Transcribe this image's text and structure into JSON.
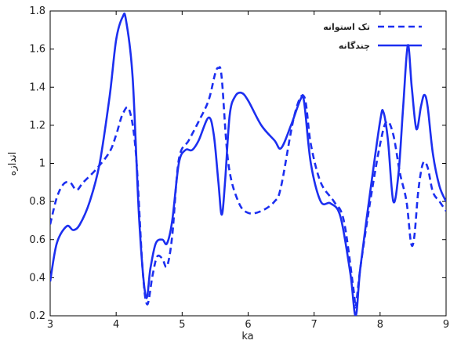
{
  "chart_data": {
    "type": "line",
    "xlabel": "ka",
    "ylabel": "اندازه",
    "xlim": [
      3,
      9
    ],
    "ylim": [
      0.2,
      1.8
    ],
    "xticks": [
      "3",
      "4",
      "5",
      "6",
      "7",
      "8",
      "9"
    ],
    "yticks": [
      "0.2",
      "0.4",
      "0.6",
      "0.8",
      "1",
      "1.2",
      "1.4",
      "1.6",
      "1.8"
    ],
    "grid": false,
    "legend_position": "top-right",
    "colors": {
      "series_color": "#1c2ff0"
    },
    "series": [
      {
        "name": "تک استوانه",
        "style": "dashed",
        "points": [
          [
            3.0,
            0.68
          ],
          [
            3.1,
            0.82
          ],
          [
            3.2,
            0.89
          ],
          [
            3.3,
            0.9
          ],
          [
            3.4,
            0.86
          ],
          [
            3.5,
            0.9
          ],
          [
            3.7,
            0.97
          ],
          [
            3.9,
            1.06
          ],
          [
            4.0,
            1.15
          ],
          [
            4.1,
            1.26
          ],
          [
            4.2,
            1.28
          ],
          [
            4.3,
            1.05
          ],
          [
            4.4,
            0.45
          ],
          [
            4.47,
            0.26
          ],
          [
            4.55,
            0.41
          ],
          [
            4.62,
            0.51
          ],
          [
            4.7,
            0.5
          ],
          [
            4.77,
            0.46
          ],
          [
            4.85,
            0.62
          ],
          [
            4.95,
            1.02
          ],
          [
            5.1,
            1.12
          ],
          [
            5.25,
            1.22
          ],
          [
            5.4,
            1.33
          ],
          [
            5.5,
            1.47
          ],
          [
            5.55,
            1.5
          ],
          [
            5.6,
            1.45
          ],
          [
            5.7,
            1.0
          ],
          [
            5.85,
            0.8
          ],
          [
            6.0,
            0.74
          ],
          [
            6.2,
            0.75
          ],
          [
            6.4,
            0.8
          ],
          [
            6.5,
            0.88
          ],
          [
            6.7,
            1.25
          ],
          [
            6.85,
            1.35
          ],
          [
            6.95,
            1.1
          ],
          [
            7.1,
            0.9
          ],
          [
            7.3,
            0.8
          ],
          [
            7.45,
            0.7
          ],
          [
            7.6,
            0.33
          ],
          [
            7.63,
            0.25
          ],
          [
            7.7,
            0.45
          ],
          [
            7.85,
            0.8
          ],
          [
            8.0,
            1.1
          ],
          [
            8.1,
            1.22
          ],
          [
            8.2,
            1.15
          ],
          [
            8.3,
            0.95
          ],
          [
            8.4,
            0.8
          ],
          [
            8.47,
            0.58
          ],
          [
            8.52,
            0.62
          ],
          [
            8.58,
            0.86
          ],
          [
            8.65,
            1.0
          ],
          [
            8.72,
            0.98
          ],
          [
            8.8,
            0.85
          ],
          [
            8.9,
            0.8
          ],
          [
            9.0,
            0.75
          ]
        ]
      },
      {
        "name": "چندگانه",
        "style": "solid",
        "points": [
          [
            3.0,
            0.38
          ],
          [
            3.1,
            0.58
          ],
          [
            3.25,
            0.67
          ],
          [
            3.35,
            0.65
          ],
          [
            3.45,
            0.68
          ],
          [
            3.6,
            0.8
          ],
          [
            3.75,
            1.0
          ],
          [
            3.9,
            1.35
          ],
          [
            4.0,
            1.65
          ],
          [
            4.1,
            1.77
          ],
          [
            4.15,
            1.75
          ],
          [
            4.25,
            1.45
          ],
          [
            4.35,
            0.7
          ],
          [
            4.45,
            0.3
          ],
          [
            4.52,
            0.45
          ],
          [
            4.6,
            0.58
          ],
          [
            4.7,
            0.6
          ],
          [
            4.77,
            0.58
          ],
          [
            4.85,
            0.7
          ],
          [
            4.95,
            1.0
          ],
          [
            5.05,
            1.07
          ],
          [
            5.15,
            1.07
          ],
          [
            5.25,
            1.12
          ],
          [
            5.4,
            1.24
          ],
          [
            5.48,
            1.15
          ],
          [
            5.55,
            0.9
          ],
          [
            5.6,
            0.73
          ],
          [
            5.65,
            0.9
          ],
          [
            5.72,
            1.25
          ],
          [
            5.8,
            1.35
          ],
          [
            5.9,
            1.37
          ],
          [
            6.0,
            1.33
          ],
          [
            6.2,
            1.2
          ],
          [
            6.4,
            1.12
          ],
          [
            6.5,
            1.08
          ],
          [
            6.65,
            1.2
          ],
          [
            6.8,
            1.34
          ],
          [
            6.85,
            1.32
          ],
          [
            6.95,
            1.0
          ],
          [
            7.1,
            0.8
          ],
          [
            7.25,
            0.79
          ],
          [
            7.4,
            0.72
          ],
          [
            7.55,
            0.42
          ],
          [
            7.63,
            0.2
          ],
          [
            7.7,
            0.45
          ],
          [
            7.85,
            0.85
          ],
          [
            8.0,
            1.22
          ],
          [
            8.05,
            1.27
          ],
          [
            8.12,
            1.12
          ],
          [
            8.2,
            0.8
          ],
          [
            8.28,
            0.95
          ],
          [
            8.35,
            1.3
          ],
          [
            8.42,
            1.62
          ],
          [
            8.48,
            1.4
          ],
          [
            8.55,
            1.18
          ],
          [
            8.62,
            1.3
          ],
          [
            8.67,
            1.36
          ],
          [
            8.72,
            1.3
          ],
          [
            8.8,
            1.05
          ],
          [
            8.9,
            0.88
          ],
          [
            9.0,
            0.8
          ]
        ]
      }
    ]
  }
}
